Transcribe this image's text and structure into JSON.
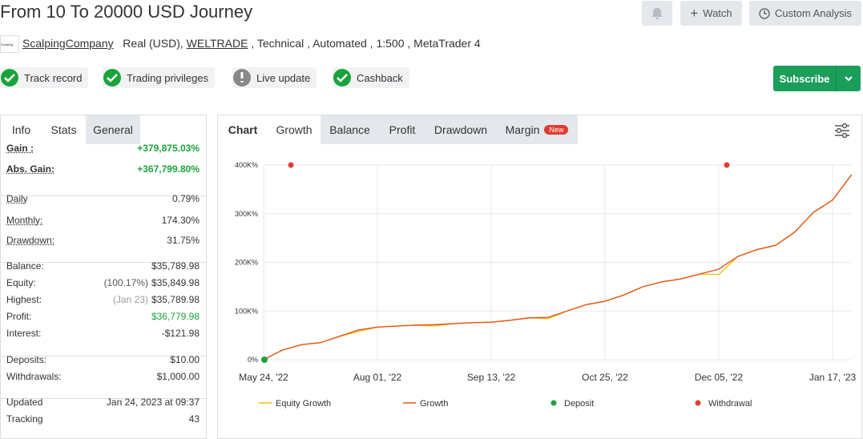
{
  "header": {
    "title": "From 10 To 20000 USD Journey",
    "watch": "Watch",
    "custom_analysis": "Custom Analysis",
    "account": "ScalpingCompany",
    "detail_1": "Real (USD),",
    "broker": "WELTRADE",
    "detail_2": ", Technical , Automated , 1:500 , MetaTrader 4",
    "subscribe": "Subscribe"
  },
  "badges": [
    "Track record",
    "Trading privileges",
    "Live update",
    "Cashback"
  ],
  "stats": {
    "tabs": [
      "Info",
      "Stats",
      "General"
    ],
    "groups": [
      [
        {
          "label": "Gain :",
          "value": "+379,875.03%"
        },
        {
          "label": "Abs. Gain:",
          "value": "+367,799.80%"
        }
      ],
      [
        {
          "label": "Daily",
          "value": "0.79%"
        },
        {
          "label": "Monthly:",
          "value": "174.30%"
        },
        {
          "label": "Drawdown:",
          "value": "31.75%"
        }
      ],
      [
        {
          "label": "Balance:",
          "value": "$35,789.98"
        },
        {
          "label": "Equity:",
          "note": "(100.17%)",
          "value": "$35,849.98"
        },
        {
          "label": "Highest:",
          "note": "(Jan 23)",
          "value": "$35,789.98"
        },
        {
          "label": "Profit:",
          "value": "$36,779.98"
        },
        {
          "label": "Interest:",
          "value": "-$121.98"
        }
      ],
      [
        {
          "label": "Deposits:",
          "value": "$10.00"
        },
        {
          "label": "Withdrawals:",
          "value": "$1,000.00"
        }
      ],
      [
        {
          "label": "Updated",
          "value": "Jan 24, 2023 at 09:37"
        },
        {
          "label": "Tracking",
          "value": "43"
        }
      ]
    ]
  },
  "chart_tabs": {
    "items": [
      "Chart",
      "Growth",
      "Balance",
      "Profit",
      "Drawdown",
      "Margin"
    ],
    "new": "New"
  },
  "chart_data": {
    "type": "line",
    "categories": [
      "May 24, '22",
      null,
      null,
      null,
      null,
      null,
      "Aug 01, '22",
      null,
      null,
      null,
      null,
      null,
      "Sep 13, '22",
      null,
      null,
      null,
      null,
      null,
      "Oct 25, '22",
      null,
      null,
      null,
      null,
      null,
      "Dec 05, '22",
      null,
      null,
      null,
      null,
      null,
      "Jan 17, '23",
      null
    ],
    "series": [
      {
        "name": "Equity Growth",
        "color": "#f0c419",
        "values": [
          0,
          20000,
          31000,
          35000,
          48000,
          58000,
          67000,
          69000,
          71000,
          69000,
          74000,
          76000,
          77000,
          81000,
          86000,
          84000,
          100000,
          113000,
          120000,
          133000,
          150000,
          160000,
          166000,
          176000,
          175000,
          212000,
          226000,
          235000,
          262000,
          303000,
          328000,
          380000
        ]
      },
      {
        "name": "Growth",
        "color": "#e0561e",
        "values": [
          0,
          20000,
          31000,
          35000,
          48000,
          61000,
          67000,
          69000,
          71000,
          72000,
          74000,
          76000,
          77000,
          81000,
          86000,
          87000,
          100000,
          113000,
          120000,
          133000,
          150000,
          160000,
          166000,
          176000,
          186000,
          212000,
          226000,
          235000,
          262000,
          303000,
          328000,
          380000
        ]
      }
    ],
    "markers": {
      "deposit": {
        "name": "Deposit",
        "color": "#1aa33b"
      },
      "withdrawal": {
        "name": "Withdrawal",
        "color": "#e03c31"
      }
    },
    "ylim": [
      0,
      400000
    ],
    "yticks": [
      {
        "value": 0,
        "label": "0%"
      },
      {
        "value": 100000,
        "label": "100K%"
      },
      {
        "value": 200000,
        "label": "200K%"
      },
      {
        "value": 300000,
        "label": "300K%"
      },
      {
        "value": 400000,
        "label": "400K%"
      }
    ],
    "grid": true
  }
}
